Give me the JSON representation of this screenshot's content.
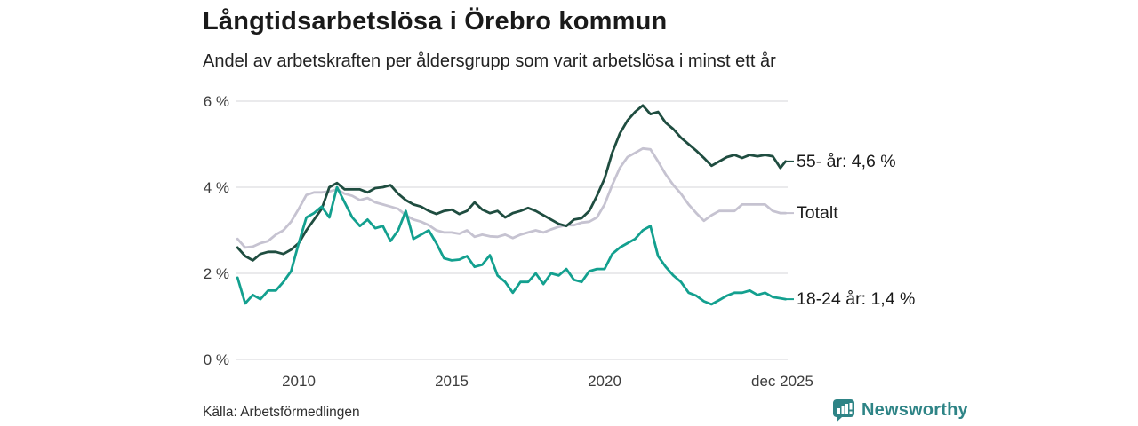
{
  "header": {
    "title": "Långtidsarbetslösa i Örebro kommun",
    "subtitle": "Andel av arbetskraften per åldersgrupp som varit arbetslösa i minst ett år"
  },
  "footer": {
    "source": "Källa: Arbetsförmedlingen",
    "brand": "Newsworthy",
    "brand_color": "#2e8486"
  },
  "chart_data": {
    "type": "line",
    "title": "Långtidsarbetslösa i Örebro kommun",
    "subtitle": "Andel av arbetskraften per åldersgrupp som varit arbetslösa i minst ett år",
    "grid": "horizontal-only",
    "grid_color": "#e4e4e6",
    "ylim": [
      0,
      6
    ],
    "xlim": [
      2007.95,
      2025.92
    ],
    "y_ticks": [
      {
        "label": "6 %",
        "value": 6
      },
      {
        "label": "4 %",
        "value": 4
      },
      {
        "label": "2 %",
        "value": 2
      },
      {
        "label": "0 %",
        "value": 0
      }
    ],
    "x_ticks": [
      {
        "label": "2010",
        "year": 2010
      },
      {
        "label": "2015",
        "year": 2015
      },
      {
        "label": "2020",
        "year": 2020
      },
      {
        "label": "dec 2025",
        "year": 2025.5
      }
    ],
    "legend_position": "right-end-labels",
    "x": [
      2008.0,
      2008.25,
      2008.5,
      2008.75,
      2009.0,
      2009.25,
      2009.5,
      2009.75,
      2010.0,
      2010.25,
      2010.5,
      2010.75,
      2011.0,
      2011.25,
      2011.5,
      2011.75,
      2012.0,
      2012.25,
      2012.5,
      2012.75,
      2013.0,
      2013.25,
      2013.5,
      2013.75,
      2014.0,
      2014.25,
      2014.5,
      2014.75,
      2015.0,
      2015.25,
      2015.5,
      2015.75,
      2016.0,
      2016.25,
      2016.5,
      2016.75,
      2017.0,
      2017.25,
      2017.5,
      2017.75,
      2018.0,
      2018.25,
      2018.5,
      2018.75,
      2019.0,
      2019.25,
      2019.5,
      2019.75,
      2020.0,
      2020.25,
      2020.5,
      2020.75,
      2021.0,
      2021.25,
      2021.5,
      2021.75,
      2022.0,
      2022.25,
      2022.5,
      2022.75,
      2023.0,
      2023.25,
      2023.5,
      2023.75,
      2024.0,
      2024.25,
      2024.5,
      2024.75,
      2025.0,
      2025.25,
      2025.5,
      2025.75,
      2025.92
    ],
    "series": [
      {
        "name": "55- år",
        "end_label": "55- år: 4,6 %",
        "end_value_text": "4,6 %",
        "color": "#1f4d40",
        "values": [
          2.6,
          2.4,
          2.3,
          2.45,
          2.5,
          2.5,
          2.45,
          2.55,
          2.7,
          3.0,
          3.25,
          3.5,
          4.0,
          4.1,
          3.95,
          3.95,
          3.95,
          3.88,
          3.98,
          4.0,
          4.05,
          3.85,
          3.7,
          3.6,
          3.55,
          3.45,
          3.38,
          3.45,
          3.48,
          3.38,
          3.45,
          3.65,
          3.48,
          3.4,
          3.45,
          3.3,
          3.4,
          3.45,
          3.52,
          3.45,
          3.35,
          3.25,
          3.15,
          3.1,
          3.25,
          3.28,
          3.45,
          3.8,
          4.2,
          4.8,
          5.25,
          5.55,
          5.75,
          5.9,
          5.7,
          5.75,
          5.5,
          5.35,
          5.15,
          5.0,
          4.85,
          4.68,
          4.5,
          4.6,
          4.7,
          4.75,
          4.68,
          4.75,
          4.72,
          4.75,
          4.72,
          4.45,
          4.6
        ]
      },
      {
        "name": "Totalt",
        "end_label": "Totalt",
        "end_value_text": "",
        "color": "#c6c3d1",
        "values": [
          2.8,
          2.6,
          2.62,
          2.7,
          2.75,
          2.9,
          3.0,
          3.2,
          3.5,
          3.82,
          3.88,
          3.88,
          3.9,
          3.95,
          3.85,
          3.8,
          3.7,
          3.75,
          3.65,
          3.6,
          3.55,
          3.5,
          3.35,
          3.25,
          3.2,
          3.12,
          3.0,
          2.95,
          2.95,
          2.92,
          3.0,
          2.85,
          2.9,
          2.86,
          2.85,
          2.9,
          2.82,
          2.9,
          2.95,
          3.0,
          2.95,
          3.02,
          3.08,
          3.12,
          3.12,
          3.18,
          3.2,
          3.3,
          3.6,
          4.05,
          4.45,
          4.7,
          4.8,
          4.9,
          4.88,
          4.6,
          4.3,
          4.05,
          3.85,
          3.6,
          3.4,
          3.22,
          3.35,
          3.45,
          3.45,
          3.45,
          3.6,
          3.6,
          3.6,
          3.6,
          3.45,
          3.4,
          3.4
        ]
      },
      {
        "name": "18-24 år",
        "end_label": "18-24 år: 1,4 %",
        "end_value_text": "1,4 %",
        "color": "#13a08f",
        "values": [
          1.9,
          1.3,
          1.5,
          1.4,
          1.6,
          1.6,
          1.8,
          2.05,
          2.7,
          3.3,
          3.4,
          3.55,
          3.3,
          4.0,
          3.65,
          3.3,
          3.1,
          3.25,
          3.05,
          3.1,
          2.75,
          3.0,
          3.45,
          2.8,
          2.9,
          3.0,
          2.7,
          2.35,
          2.3,
          2.32,
          2.4,
          2.15,
          2.2,
          2.42,
          1.95,
          1.8,
          1.55,
          1.8,
          1.8,
          2.0,
          1.75,
          2.0,
          1.95,
          2.1,
          1.85,
          1.8,
          2.05,
          2.1,
          2.1,
          2.45,
          2.6,
          2.7,
          2.8,
          3.0,
          3.1,
          2.4,
          2.15,
          1.95,
          1.8,
          1.55,
          1.48,
          1.35,
          1.28,
          1.38,
          1.48,
          1.55,
          1.55,
          1.6,
          1.5,
          1.55,
          1.45,
          1.42,
          1.4
        ]
      }
    ]
  }
}
